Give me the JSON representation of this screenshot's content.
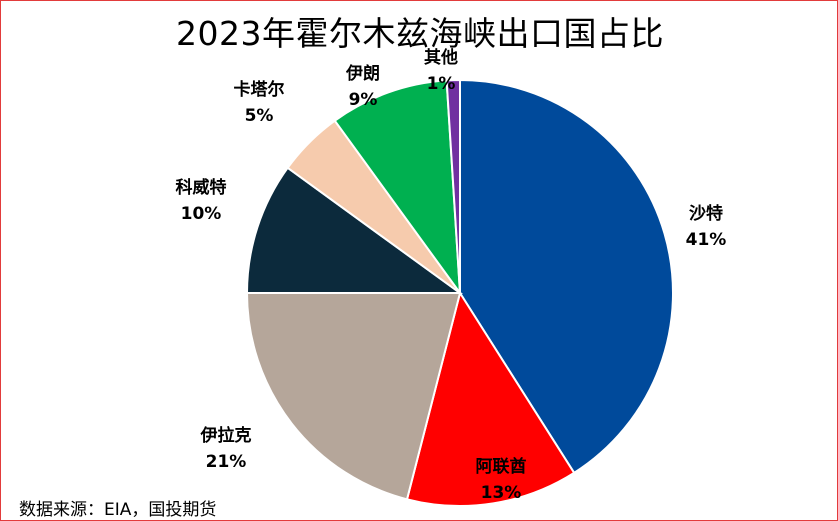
{
  "chart_data": {
    "type": "pie",
    "title": "2023年霍尔木兹海峡出口国占比",
    "slices": [
      {
        "label": "沙特",
        "value": 41,
        "value_label": "41%",
        "color": "#004a9b"
      },
      {
        "label": "阿联酋",
        "value": 13,
        "value_label": "13%",
        "color": "#ff0000"
      },
      {
        "label": "伊拉克",
        "value": 21,
        "value_label": "21%",
        "color": "#b5a69a"
      },
      {
        "label": "科威特",
        "value": 10,
        "value_label": "10%",
        "color": "#0c2a3c"
      },
      {
        "label": "卡塔尔",
        "value": 5,
        "value_label": "5%",
        "color": "#f6cbad"
      },
      {
        "label": "伊朗",
        "value": 9,
        "value_label": "9%",
        "color": "#00b050"
      },
      {
        "label": "其他",
        "value": 1,
        "value_label": "1%",
        "color": "#7030a0"
      }
    ],
    "start": "top",
    "direction": "clockwise",
    "slice_border_color": "#ffffff"
  },
  "source": "数据来源：EIA，国投期货"
}
